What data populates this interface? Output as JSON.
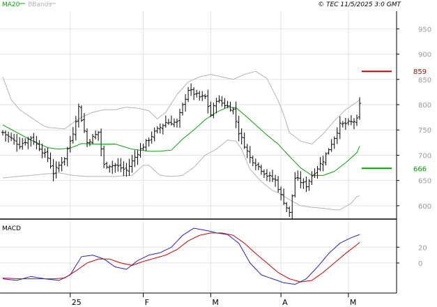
{
  "caption": "© TEC 11/5/2025 3:0 GMT",
  "legend": [
    {
      "label": "MA20",
      "color": "#0aa00a"
    },
    {
      "label": "BBands",
      "color": "#b4b4b4"
    }
  ],
  "macd_label": "MACD",
  "chart_data": [
    {
      "type": "bar",
      "subtype": "ohlc-price-with-indicators",
      "ylim": [
        575,
        985
      ],
      "yticks": [
        {
          "value": 950,
          "label": "950"
        },
        {
          "value": 900,
          "label": "900"
        },
        {
          "value": 850,
          "label": "850"
        },
        {
          "value": 800,
          "label": "800"
        },
        {
          "value": 750,
          "label": "750"
        },
        {
          "value": 700,
          "label": "700"
        },
        {
          "value": 650,
          "label": "650"
        },
        {
          "value": 600,
          "label": "600"
        }
      ],
      "xticks": [
        {
          "index": 24,
          "label": "25"
        },
        {
          "index": 50,
          "label": "F"
        },
        {
          "index": 74,
          "label": "M"
        },
        {
          "index": 99,
          "label": "A"
        },
        {
          "index": 123,
          "label": "M"
        }
      ],
      "n_bars": 128,
      "price_path": [
        [
          0,
          745
        ],
        [
          6,
          720
        ],
        [
          10,
          735
        ],
        [
          16,
          695
        ],
        [
          18,
          665
        ],
        [
          22,
          695
        ],
        [
          25,
          745
        ],
        [
          27,
          795
        ],
        [
          30,
          725
        ],
        [
          34,
          745
        ],
        [
          36,
          680
        ],
        [
          40,
          680
        ],
        [
          44,
          670
        ],
        [
          48,
          705
        ],
        [
          54,
          745
        ],
        [
          58,
          765
        ],
        [
          62,
          765
        ],
        [
          66,
          830
        ],
        [
          70,
          815
        ],
        [
          72,
          815
        ],
        [
          74,
          780
        ],
        [
          76,
          810
        ],
        [
          82,
          790
        ],
        [
          84,
          745
        ],
        [
          88,
          695
        ],
        [
          94,
          660
        ],
        [
          97,
          650
        ],
        [
          99,
          620
        ],
        [
          102,
          585
        ],
        [
          104,
          655
        ],
        [
          108,
          640
        ],
        [
          110,
          660
        ],
        [
          114,
          690
        ],
        [
          118,
          735
        ],
        [
          120,
          760
        ],
        [
          124,
          765
        ],
        [
          126,
          770
        ],
        [
          127,
          800
        ]
      ],
      "ma20_path": [
        [
          0,
          760
        ],
        [
          5,
          745
        ],
        [
          10,
          730
        ],
        [
          16,
          715
        ],
        [
          20,
          712
        ],
        [
          24,
          714
        ],
        [
          28,
          723
        ],
        [
          34,
          722
        ],
        [
          40,
          722
        ],
        [
          46,
          712
        ],
        [
          52,
          708
        ],
        [
          56,
          708
        ],
        [
          60,
          710
        ],
        [
          64,
          732
        ],
        [
          68,
          750
        ],
        [
          72,
          770
        ],
        [
          76,
          785
        ],
        [
          80,
          795
        ],
        [
          83,
          794
        ],
        [
          86,
          780
        ],
        [
          90,
          760
        ],
        [
          94,
          740
        ],
        [
          98,
          722
        ],
        [
          102,
          698
        ],
        [
          106,
          675
        ],
        [
          110,
          660
        ],
        [
          114,
          660
        ],
        [
          118,
          668
        ],
        [
          122,
          685
        ],
        [
          126,
          705
        ],
        [
          127,
          718
        ]
      ],
      "bb_upper_path": [
        [
          0,
          855
        ],
        [
          3,
          810
        ],
        [
          6,
          790
        ],
        [
          10,
          775
        ],
        [
          14,
          760
        ],
        [
          16,
          755
        ],
        [
          22,
          752
        ],
        [
          26,
          768
        ],
        [
          28,
          775
        ],
        [
          32,
          785
        ],
        [
          36,
          790
        ],
        [
          40,
          790
        ],
        [
          44,
          795
        ],
        [
          48,
          793
        ],
        [
          52,
          788
        ],
        [
          55,
          772
        ],
        [
          58,
          785
        ],
        [
          62,
          820
        ],
        [
          66,
          845
        ],
        [
          70,
          855
        ],
        [
          74,
          860
        ],
        [
          78,
          855
        ],
        [
          82,
          850
        ],
        [
          86,
          860
        ],
        [
          90,
          866
        ],
        [
          94,
          852
        ],
        [
          98,
          808
        ],
        [
          100,
          780
        ],
        [
          102,
          745
        ],
        [
          106,
          728
        ],
        [
          110,
          722
        ],
        [
          114,
          742
        ],
        [
          118,
          768
        ],
        [
          122,
          790
        ],
        [
          126,
          805
        ],
        [
          127,
          810
        ]
      ],
      "bb_lower_path": [
        [
          0,
          655
        ],
        [
          5,
          658
        ],
        [
          10,
          660
        ],
        [
          15,
          663
        ],
        [
          20,
          665
        ],
        [
          25,
          660
        ],
        [
          30,
          658
        ],
        [
          35,
          658
        ],
        [
          40,
          658
        ],
        [
          44,
          660
        ],
        [
          46,
          660
        ],
        [
          50,
          680
        ],
        [
          52,
          680
        ],
        [
          56,
          660
        ],
        [
          60,
          658
        ],
        [
          64,
          660
        ],
        [
          68,
          676
        ],
        [
          72,
          700
        ],
        [
          76,
          712
        ],
        [
          80,
          730
        ],
        [
          83,
          728
        ],
        [
          85,
          712
        ],
        [
          88,
          672
        ],
        [
          92,
          648
        ],
        [
          96,
          630
        ],
        [
          98,
          626
        ],
        [
          102,
          612
        ],
        [
          106,
          600
        ],
        [
          110,
          597
        ],
        [
          114,
          595
        ],
        [
          118,
          592
        ],
        [
          120,
          592
        ],
        [
          124,
          605
        ],
        [
          126,
          618
        ],
        [
          127,
          620
        ]
      ],
      "annotations": [
        {
          "label": "859",
          "value": 866,
          "color": "#cc0000"
        },
        {
          "label": "666",
          "value": 674,
          "color": "#00a000"
        }
      ]
    },
    {
      "type": "line",
      "title": "MACD",
      "ylim": [
        -38,
        52
      ],
      "yticks": [
        {
          "value": 20,
          "label": "20"
        },
        {
          "value": 0,
          "label": "0"
        }
      ],
      "series": [
        {
          "color": "#2222cc",
          "values_path": [
            [
              0,
              -20
            ],
            [
              5,
              -22
            ],
            [
              10,
              -17
            ],
            [
              15,
              -20
            ],
            [
              20,
              -22
            ],
            [
              24,
              -15
            ],
            [
              28,
              8
            ],
            [
              32,
              10
            ],
            [
              36,
              5
            ],
            [
              40,
              -5
            ],
            [
              44,
              -8
            ],
            [
              48,
              3
            ],
            [
              52,
              10
            ],
            [
              56,
              13
            ],
            [
              60,
              20
            ],
            [
              64,
              35
            ],
            [
              68,
              44
            ],
            [
              71,
              42
            ],
            [
              74,
              40
            ],
            [
              76,
              38
            ],
            [
              80,
              36
            ],
            [
              84,
              25
            ],
            [
              88,
              0
            ],
            [
              92,
              -15
            ],
            [
              96,
              -20
            ],
            [
              100,
              -25
            ],
            [
              104,
              -27
            ],
            [
              108,
              -20
            ],
            [
              112,
              -5
            ],
            [
              116,
              12
            ],
            [
              120,
              25
            ],
            [
              124,
              32
            ],
            [
              127,
              36
            ]
          ]
        },
        {
          "color": "#cc0000",
          "values_path": [
            [
              0,
              -19
            ],
            [
              6,
              -20
            ],
            [
              12,
              -20
            ],
            [
              18,
              -20
            ],
            [
              22,
              -19
            ],
            [
              26,
              -10
            ],
            [
              30,
              0
            ],
            [
              34,
              5
            ],
            [
              38,
              5
            ],
            [
              42,
              0
            ],
            [
              46,
              -3
            ],
            [
              50,
              2
            ],
            [
              54,
              6
            ],
            [
              58,
              10
            ],
            [
              62,
              17
            ],
            [
              66,
              28
            ],
            [
              70,
              35
            ],
            [
              74,
              38
            ],
            [
              78,
              38
            ],
            [
              82,
              35
            ],
            [
              86,
              25
            ],
            [
              90,
              12
            ],
            [
              94,
              0
            ],
            [
              98,
              -12
            ],
            [
              102,
              -20
            ],
            [
              106,
              -24
            ],
            [
              110,
              -22
            ],
            [
              114,
              -12
            ],
            [
              118,
              0
            ],
            [
              122,
              12
            ],
            [
              126,
              23
            ],
            [
              127,
              26
            ]
          ]
        }
      ]
    }
  ]
}
